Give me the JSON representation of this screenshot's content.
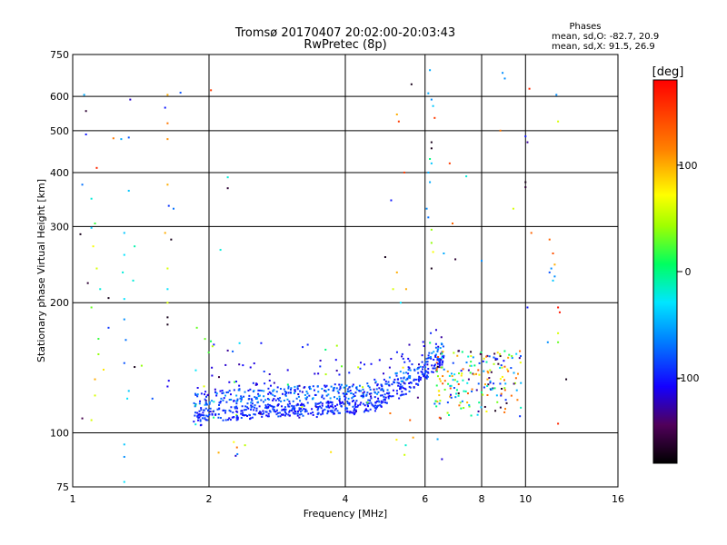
{
  "chart_data": {
    "type": "scatter",
    "title": "Tromsø 20170407 20:02:00-20:03:43",
    "subtitle": "RwPretec (8p)",
    "xlabel": "Frequency [MHz]",
    "ylabel": "Stationary phase Virtual Height [km]",
    "xscale": "log2",
    "yscale": "log",
    "xlim": [
      1,
      16
    ],
    "ylim": [
      75,
      750
    ],
    "x_ticks": [
      "1",
      "2",
      "4",
      "6",
      "8",
      "10",
      "16"
    ],
    "x_tick_values": [
      1,
      2,
      4,
      6,
      8,
      10,
      16
    ],
    "y_ticks": [
      "75",
      "100",
      "200",
      "300",
      "400",
      "500",
      "600",
      "750"
    ],
    "y_tick_values": [
      75,
      100,
      200,
      300,
      400,
      500,
      600,
      750
    ],
    "grid": true,
    "phase_stats": {
      "title": "Phases",
      "line_o": "mean, sd,O: -82.7, 20.9",
      "line_x": "mean, sd,X:  91.5, 26.9"
    },
    "colorbar": {
      "label": "[deg]",
      "range": [
        -180,
        180
      ],
      "ticks": [
        "100",
        "0",
        "-100"
      ],
      "tick_values": [
        100,
        0,
        -100
      ],
      "colormap": "rainbow"
    },
    "series": [
      {
        "points": [
          [
            1.06,
            605,
            -50
          ],
          [
            1.07,
            555,
            -160
          ],
          [
            1.07,
            490,
            -100
          ],
          [
            1.05,
            375,
            -70
          ],
          [
            1.1,
            348,
            -20
          ],
          [
            1.04,
            288,
            -170
          ],
          [
            1.1,
            298,
            -40
          ],
          [
            1.08,
            222,
            -160
          ],
          [
            1.13,
            240,
            60
          ],
          [
            1.15,
            215,
            -20
          ],
          [
            1.2,
            175,
            -90
          ],
          [
            1.14,
            165,
            20
          ],
          [
            1.14,
            152,
            40
          ],
          [
            1.17,
            140,
            80
          ],
          [
            1.05,
            108,
            -150
          ],
          [
            1.13,
            410,
            160
          ],
          [
            1.12,
            305,
            20
          ],
          [
            1.11,
            270,
            70
          ],
          [
            1.1,
            195,
            30
          ],
          [
            1.12,
            122,
            60
          ],
          [
            1.1,
            107,
            60
          ],
          [
            1.12,
            133,
            100
          ],
          [
            1.2,
            205,
            -170
          ],
          [
            1.28,
            478,
            -50
          ],
          [
            1.33,
            482,
            -80
          ],
          [
            1.23,
            480,
            120
          ],
          [
            1.33,
            363,
            -40
          ],
          [
            1.3,
            290,
            -40
          ],
          [
            1.3,
            258,
            -30
          ],
          [
            1.29,
            235,
            -20
          ],
          [
            1.3,
            204,
            -30
          ],
          [
            1.3,
            183,
            -60
          ],
          [
            1.31,
            164,
            -70
          ],
          [
            1.3,
            145,
            -80
          ],
          [
            1.33,
            125,
            -40
          ],
          [
            1.32,
            120,
            -30
          ],
          [
            1.3,
            94,
            -40
          ],
          [
            1.3,
            88,
            -60
          ],
          [
            1.3,
            77,
            -30
          ],
          [
            1.34,
            590,
            -120
          ],
          [
            1.37,
            270,
            -10
          ],
          [
            1.37,
            142,
            -170
          ],
          [
            1.42,
            143,
            40
          ],
          [
            1.36,
            225,
            -20
          ],
          [
            1.5,
            120,
            -80
          ],
          [
            1.62,
            605,
            100
          ],
          [
            1.62,
            520,
            120
          ],
          [
            1.62,
            478,
            110
          ],
          [
            1.62,
            375,
            100
          ],
          [
            1.63,
            335,
            -90
          ],
          [
            1.6,
            565,
            -100
          ],
          [
            1.67,
            330,
            -70
          ],
          [
            1.65,
            280,
            -170
          ],
          [
            1.62,
            240,
            60
          ],
          [
            1.62,
            215,
            -30
          ],
          [
            1.62,
            200,
            60
          ],
          [
            1.62,
            185,
            -170
          ],
          [
            1.62,
            178,
            -170
          ],
          [
            1.63,
            132,
            -110
          ],
          [
            1.62,
            128,
            -110
          ],
          [
            1.6,
            290,
            100
          ],
          [
            1.73,
            612,
            -80
          ],
          [
            2.0,
            110,
            -30
          ],
          [
            2.2,
            390,
            -20
          ],
          [
            2.2,
            368,
            -160
          ],
          [
            2.12,
            265,
            -20
          ],
          [
            2.02,
            620,
            150
          ],
          [
            2.1,
            90,
            100
          ],
          [
            2.05,
            160,
            -100
          ],
          [
            2.2,
            155,
            -130
          ],
          [
            2.05,
            118,
            -20
          ],
          [
            2.3,
            110,
            40
          ],
          [
            1.88,
            175,
            30
          ],
          [
            5.25,
            525,
            150
          ],
          [
            5.2,
            545,
            100
          ],
          [
            5.4,
            400,
            150
          ],
          [
            5.6,
            640,
            -170
          ],
          [
            4.9,
            255,
            -170
          ],
          [
            5.05,
            345,
            -100
          ],
          [
            5.3,
            200,
            -30
          ],
          [
            5.2,
            235,
            100
          ],
          [
            5.45,
            215,
            100
          ],
          [
            5.1,
            215,
            60
          ],
          [
            6.15,
            690,
            -50
          ],
          [
            6.1,
            610,
            -50
          ],
          [
            6.2,
            590,
            -60
          ],
          [
            6.25,
            570,
            -40
          ],
          [
            6.3,
            535,
            150
          ],
          [
            6.2,
            470,
            -170
          ],
          [
            6.2,
            455,
            -170
          ],
          [
            6.15,
            430,
            0
          ],
          [
            6.2,
            420,
            -40
          ],
          [
            6.1,
            400,
            -50
          ],
          [
            6.15,
            380,
            -50
          ],
          [
            6.05,
            330,
            -60
          ],
          [
            6.1,
            315,
            -70
          ],
          [
            6.2,
            295,
            40
          ],
          [
            6.2,
            275,
            40
          ],
          [
            6.25,
            262,
            70
          ],
          [
            6.2,
            240,
            -170
          ],
          [
            6.6,
            260,
            -50
          ],
          [
            6.8,
            420,
            150
          ],
          [
            6.9,
            305,
            130
          ],
          [
            7.0,
            252,
            -160
          ],
          [
            7.4,
            392,
            -20
          ],
          [
            8.0,
            250,
            -60
          ],
          [
            8.8,
            500,
            120
          ],
          [
            8.9,
            680,
            -60
          ],
          [
            9.0,
            660,
            -60
          ],
          [
            9.4,
            330,
            60
          ],
          [
            10.0,
            485,
            -100
          ],
          [
            10.1,
            470,
            -130
          ],
          [
            10.0,
            380,
            -170
          ],
          [
            10.0,
            370,
            -160
          ],
          [
            10.3,
            290,
            130
          ],
          [
            10.1,
            195,
            -100
          ],
          [
            10.2,
            625,
            160
          ],
          [
            11.3,
            280,
            130
          ],
          [
            11.5,
            260,
            140
          ],
          [
            11.6,
            245,
            100
          ],
          [
            11.4,
            240,
            -60
          ],
          [
            11.6,
            230,
            -60
          ],
          [
            11.5,
            225,
            -40
          ],
          [
            11.3,
            235,
            -80
          ],
          [
            11.8,
            195,
            170
          ],
          [
            11.9,
            190,
            170
          ],
          [
            11.8,
            170,
            60
          ],
          [
            11.8,
            162,
            30
          ],
          [
            11.2,
            162,
            -60
          ],
          [
            11.7,
            605,
            -60
          ],
          [
            11.8,
            525,
            60
          ],
          [
            12.3,
            133,
            -170
          ],
          [
            11.8,
            105,
            160
          ]
        ]
      },
      {
        "random_cluster": {
          "x_range": [
            1.85,
            6.6
          ],
          "y_range": [
            100,
            180
          ],
          "count": 950,
          "seed": 7
        }
      },
      {
        "random_cluster": {
          "x_range": [
            6.3,
            9.8
          ],
          "y_range": [
            108,
            155
          ],
          "count": 200,
          "seed": 11
        }
      }
    ]
  }
}
